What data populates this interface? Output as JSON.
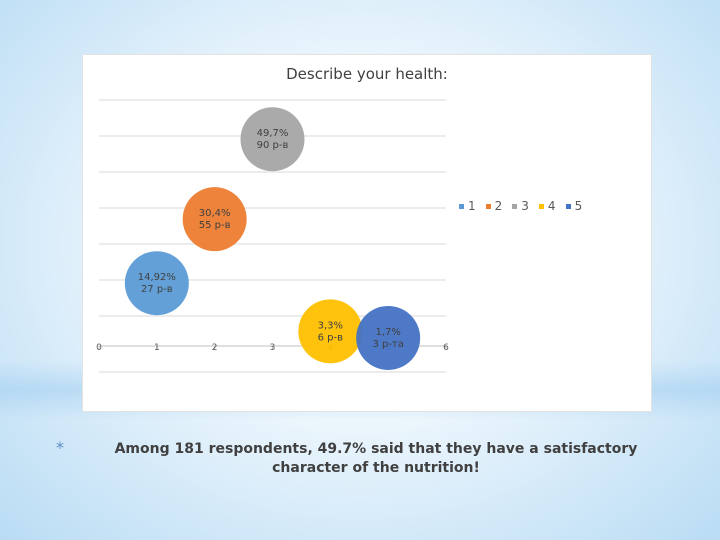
{
  "slide": {
    "bullet": "*",
    "caption": "Among 181 respondents, 49.7% said that they have a satisfactory character of the nutrition!"
  },
  "chart_data": {
    "type": "scatter",
    "title": "Describe your health:",
    "xlim": [
      0,
      6
    ],
    "x_ticks": [
      "0",
      "1",
      "2",
      "3",
      "4",
      "5",
      "6"
    ],
    "grid": true,
    "legend_position": "right",
    "series": [
      {
        "name": "1",
        "x": 1,
        "y": 14.92,
        "color": "#5b9bd5",
        "label": [
          "14,92%",
          "27 р-в"
        ]
      },
      {
        "name": "2",
        "x": 2,
        "y": 30.4,
        "color": "#ed7d31",
        "label": [
          "30,4%",
          "55 р-в"
        ]
      },
      {
        "name": "3",
        "x": 3,
        "y": 49.7,
        "color": "#a5a5a5",
        "label": [
          "49,7%",
          "90 р-в"
        ]
      },
      {
        "name": "4",
        "x": 4,
        "y": 3.3,
        "color": "#ffc000",
        "label": [
          "3,3%",
          "6 р-в"
        ]
      },
      {
        "name": "5",
        "x": 5,
        "y": 1.7,
        "color": "#4472c4",
        "label": [
          "1,7%",
          "3 р-та"
        ]
      }
    ]
  }
}
